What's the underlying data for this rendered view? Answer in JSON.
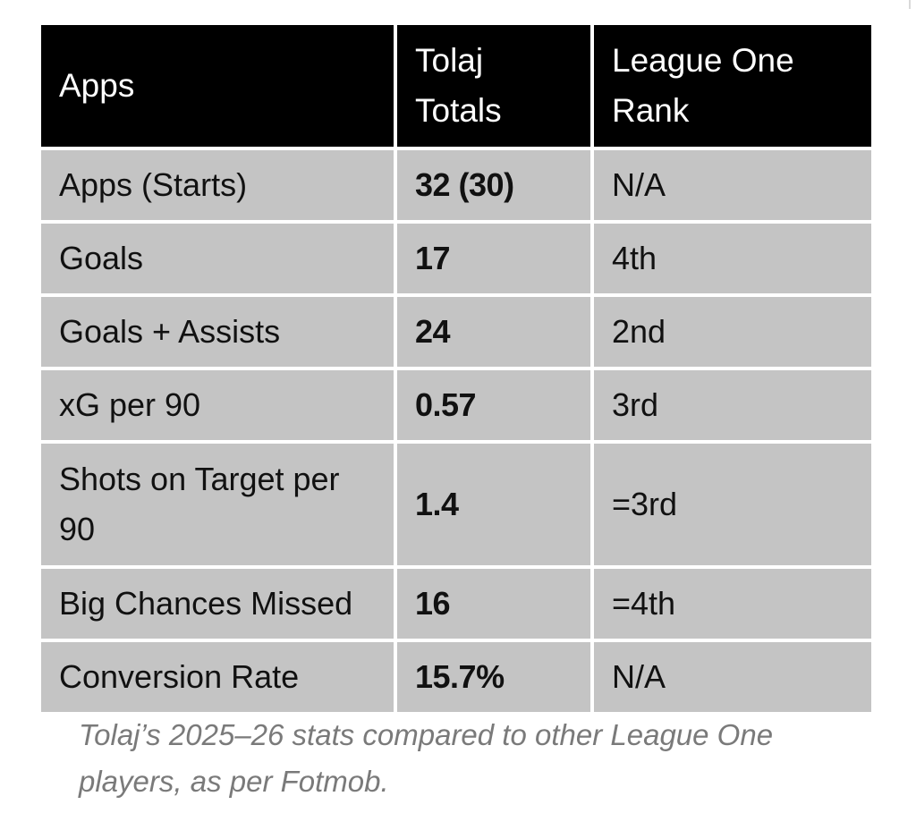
{
  "table": {
    "headers": [
      "Apps",
      "Tolaj Totals",
      "League One Rank"
    ],
    "rows": [
      {
        "stat": "Apps (Starts)",
        "total": "32 (30)",
        "rank": "N/A"
      },
      {
        "stat": "Goals",
        "total": "17",
        "rank": "4th"
      },
      {
        "stat": "Goals + Assists",
        "total": "24",
        "rank": "2nd"
      },
      {
        "stat": "xG per 90",
        "total": "0.57",
        "rank": "3rd"
      },
      {
        "stat": "Shots on Target per 90",
        "total": "1.4",
        "rank": "=3rd"
      },
      {
        "stat": "Big Chances Missed",
        "total": "16",
        "rank": "=4th"
      },
      {
        "stat": "Conversion Rate",
        "total": "15.7%",
        "rank": "N/A"
      }
    ]
  },
  "caption": "Tolaj’s 2025–26 stats compared to other League One players, as per Fotmob.",
  "colors": {
    "header_bg": "#000000",
    "header_text": "#ffffff",
    "cell_bg": "#c4c4c4",
    "caption_text": "#7a7a7a"
  }
}
